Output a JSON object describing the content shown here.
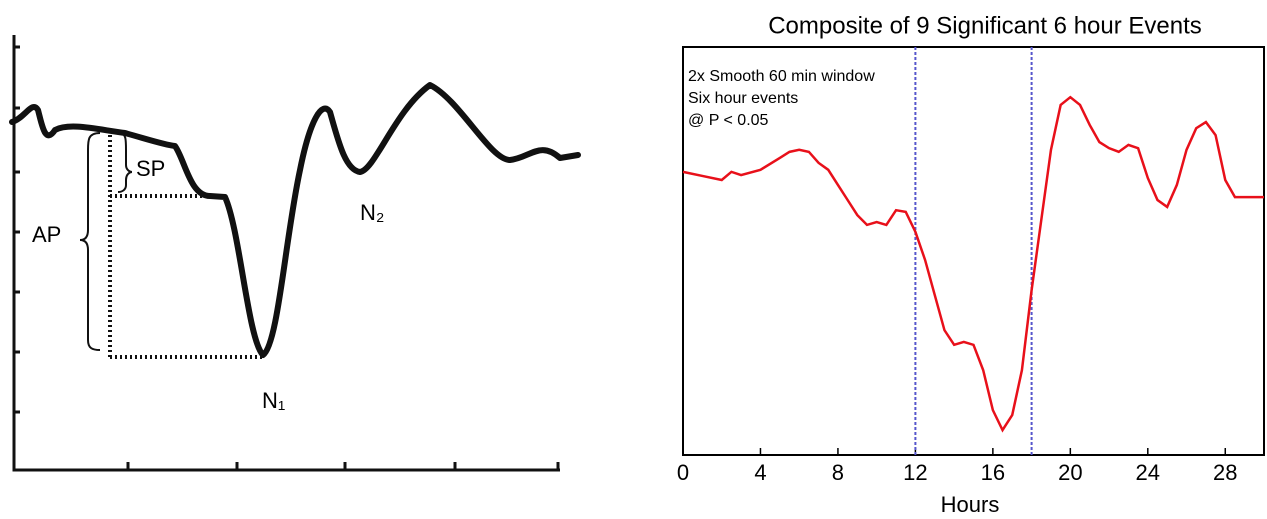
{
  "diagram": {
    "labels": {
      "ap": "AP",
      "sp": "SP",
      "n1": "N₁",
      "n2": "N₂"
    }
  },
  "chart_data": {
    "type": "line",
    "title": "Composite of 9 Significant 6 hour Events",
    "annotations": [
      "2x Smooth 60 min window",
      "Six hour events",
      "@ P < 0.05"
    ],
    "x_label": "Hours",
    "xlim": [
      0,
      30
    ],
    "xticks": [
      0,
      4,
      8,
      12,
      16,
      20,
      24,
      28
    ],
    "ylim": [
      0,
      100
    ],
    "vlines": [
      12,
      18
    ],
    "vline_color": "#5555cc",
    "series": [
      {
        "color": "#e8101a",
        "x": [
          0,
          1,
          2,
          2.5,
          3,
          4,
          5,
          5.5,
          6,
          6.5,
          7,
          7.5,
          8,
          8.5,
          9,
          9.5,
          10,
          10.5,
          11,
          11.5,
          12,
          12.5,
          13,
          13.5,
          14,
          14.5,
          15,
          15.5,
          16,
          16.5,
          17,
          17.5,
          18,
          18.5,
          19,
          19.5,
          20,
          20.5,
          21,
          21.5,
          22,
          22.5,
          23,
          23.5,
          24,
          24.5,
          25,
          25.5,
          26,
          26.5,
          27,
          27.5,
          28,
          28.5,
          29,
          30
        ],
        "values": [
          69.4,
          68.4,
          67.4,
          69.4,
          68.6,
          69.9,
          72.8,
          74.3,
          74.8,
          74.3,
          71.6,
          69.9,
          66.2,
          62.5,
          58.8,
          56.4,
          57.1,
          56.4,
          60.0,
          59.6,
          54.7,
          47.8,
          39.2,
          30.6,
          27.0,
          27.7,
          27.0,
          20.8,
          11.0,
          6.1,
          9.8,
          20.8,
          40.4,
          57.6,
          74.8,
          85.8,
          87.7,
          85.8,
          80.9,
          76.7,
          75.2,
          74.3,
          76.0,
          75.2,
          67.9,
          62.5,
          60.8,
          66.2,
          74.8,
          80.1,
          81.6,
          78.4,
          67.4,
          63.2,
          63.2,
          63.2
        ]
      }
    ]
  }
}
